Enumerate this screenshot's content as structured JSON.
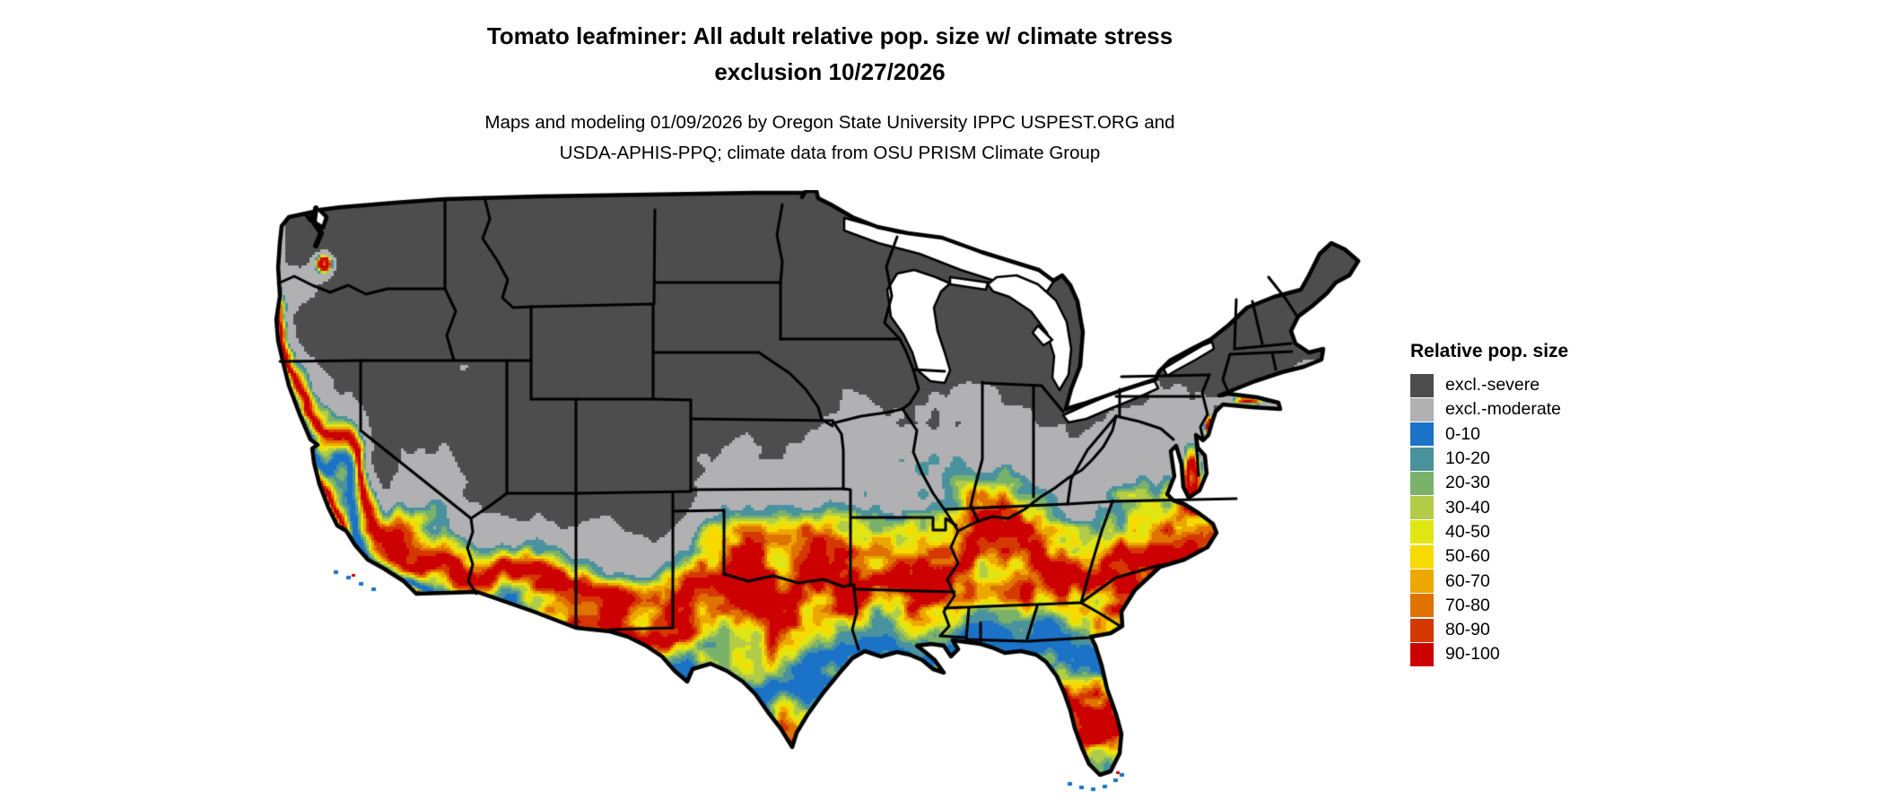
{
  "title": {
    "line1": "Tomato leafminer: All adult relative pop. size w/ climate stress",
    "line2": "exclusion 10/27/2026"
  },
  "subtitle": {
    "line1": "Maps and modeling 01/09/2026 by Oregon State University IPPC USPEST.ORG and",
    "line2": "USDA-APHIS-PPQ; climate data from OSU PRISM Climate Group"
  },
  "legend": {
    "title": "Relative pop. size",
    "entries": [
      {
        "label": "excl.-severe",
        "color": "#4d4d4d"
      },
      {
        "label": "excl.-moderate",
        "color": "#b1b1b3"
      },
      {
        "label": "0-10",
        "color": "#1a73c6"
      },
      {
        "label": "10-20",
        "color": "#4a929e"
      },
      {
        "label": "20-30",
        "color": "#7ab269"
      },
      {
        "label": "30-40",
        "color": "#b2cc48"
      },
      {
        "label": "40-50",
        "color": "#dfe614"
      },
      {
        "label": "50-60",
        "color": "#f7da00"
      },
      {
        "label": "60-70",
        "color": "#eda800"
      },
      {
        "label": "70-80",
        "color": "#e07200"
      },
      {
        "label": "80-90",
        "color": "#d53800"
      },
      {
        "label": "90-100",
        "color": "#cc0000"
      }
    ]
  },
  "chart_data": {
    "type": "heatmap",
    "subtype": "categorical raster map (choropleth-style) of the contiguous United States with state boundaries",
    "title": "Tomato leafminer: All adult relative pop. size w/ climate stress exclusion 10/27/2026",
    "variable": "Relative population size (all adult tomato leafminer) with climate stress exclusion classes",
    "date_mapped": "10/27/2026",
    "region": "Contiguous United States",
    "legend_title": "Relative pop. size",
    "legend_position": "right",
    "categories": [
      "excl.-severe",
      "excl.-moderate",
      "0-10",
      "10-20",
      "20-30",
      "30-40",
      "40-50",
      "50-60",
      "60-70",
      "70-80",
      "80-90",
      "90-100"
    ],
    "colors": [
      "#4d4d4d",
      "#b1b1b3",
      "#1a73c6",
      "#4a929e",
      "#7ab269",
      "#b2cc48",
      "#dfe614",
      "#f7da00",
      "#eda800",
      "#e07200",
      "#d53800",
      "#cc0000"
    ],
    "map_colors": {
      "water_and_outside": "#ffffff",
      "boundaries": "#000000"
    },
    "spatial_pattern_notes": [
      "Northern tier (WA interior, MT, dakotas, Great Lakes states, New England, mountain west) classed excl.-severe dark gray",
      "Transition band of excl.-moderate light gray across KS/MO/OH valley, interior Northwest, Great Basin and Colorado Plateau",
      "Southern U.S., Pacific coast strip and California valleys classed 0-10 blue",
      "Snaking 90-100 red bands with yellow/orange fringes across central Texas, the Gulf states, the Southeast fall line, coastal mid-Atlantic, central Florida and California's Central Valley"
    ]
  }
}
